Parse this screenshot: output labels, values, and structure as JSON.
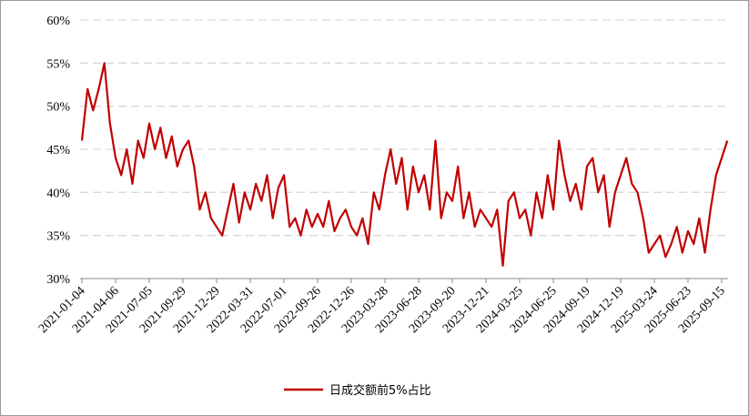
{
  "chart_data": {
    "type": "line",
    "categories": [
      "2021-01-04",
      null,
      null,
      null,
      null,
      null,
      "2021-04-06",
      null,
      null,
      null,
      null,
      null,
      "2021-07-05",
      null,
      null,
      null,
      null,
      null,
      "2021-09-29",
      null,
      null,
      null,
      null,
      null,
      "2021-12-29",
      null,
      null,
      null,
      null,
      null,
      "2022-03-31",
      null,
      null,
      null,
      null,
      null,
      "2022-07-01",
      null,
      null,
      null,
      null,
      null,
      "2022-09-26",
      null,
      null,
      null,
      null,
      null,
      "2022-12-26",
      null,
      null,
      null,
      null,
      null,
      "2023-03-28",
      null,
      null,
      null,
      null,
      null,
      "2023-06-28",
      null,
      null,
      null,
      null,
      null,
      "2023-09-20",
      null,
      null,
      null,
      null,
      null,
      "2023-12-21",
      null,
      null,
      null,
      null,
      null,
      "2024-03-25",
      null,
      null,
      null,
      null,
      null,
      "2024-06-25",
      null,
      null,
      null,
      null,
      null,
      "2024-09-19",
      null,
      null,
      null,
      null,
      null,
      "2024-12-19",
      null,
      null,
      null,
      null,
      null,
      "2025-03-24",
      null,
      null,
      null,
      null,
      null,
      "2025-06-23",
      null,
      null,
      null,
      null,
      null,
      "2025-09-15",
      null
    ],
    "series": [
      {
        "name": "日成交额前5%占比",
        "color": "#c00000",
        "values": [
          46,
          52,
          49.5,
          52,
          55,
          48,
          44,
          42,
          45,
          41,
          46,
          44,
          48,
          45,
          47.5,
          44,
          46.5,
          43,
          45,
          46,
          43,
          38,
          40,
          37,
          36,
          35,
          38,
          41,
          36.5,
          40,
          38,
          41,
          39,
          42,
          37,
          40.5,
          42,
          36,
          37,
          35,
          38,
          36,
          37.5,
          36,
          39,
          35.5,
          37,
          38,
          36,
          35,
          37,
          34,
          40,
          38,
          42,
          45,
          41,
          44,
          38,
          43,
          40,
          42,
          38,
          46,
          37,
          40,
          39,
          43,
          37,
          40,
          36,
          38,
          37,
          36,
          38,
          31.5,
          39,
          40,
          37,
          38,
          35,
          40,
          37,
          42,
          38,
          46,
          42,
          39,
          41,
          38,
          43,
          44,
          40,
          42,
          36,
          40,
          42,
          44,
          41,
          40,
          37,
          33,
          34,
          35,
          32.5,
          34,
          36,
          33,
          35.5,
          34,
          37,
          33,
          38,
          42,
          44,
          46
        ]
      }
    ],
    "ylim": [
      30,
      60
    ],
    "yticks": [
      {
        "value": 30,
        "label": "30%"
      },
      {
        "value": 35,
        "label": "35%"
      },
      {
        "value": 40,
        "label": "40%"
      },
      {
        "value": 45,
        "label": "45%"
      },
      {
        "value": 50,
        "label": "50%"
      },
      {
        "value": 55,
        "label": "55%"
      },
      {
        "value": 60,
        "label": "60%"
      }
    ],
    "grid": true,
    "legend": "bottom"
  }
}
